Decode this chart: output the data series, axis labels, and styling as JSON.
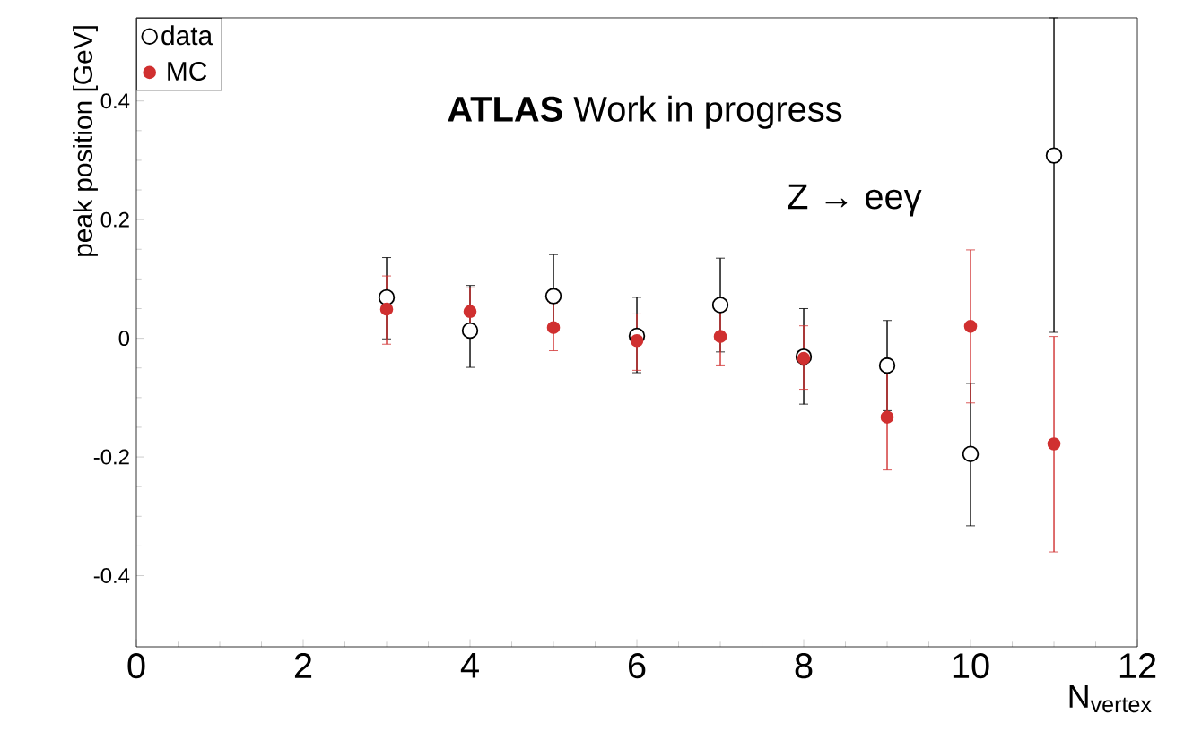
{
  "chart_data": {
    "type": "scatter",
    "xlabel": "N$_{vertex}$",
    "ylabel": "peak position [GeV]",
    "annotations": [
      "**ATLAS** Work in progress",
      "Z → eeγ"
    ],
    "xlim": [
      0,
      12
    ],
    "xticks": [
      0,
      2,
      4,
      6,
      8,
      10,
      12
    ],
    "ylim": [
      -0.52,
      0.54
    ],
    "yticks": [
      -0.4,
      -0.2,
      0,
      0.2,
      0.4
    ],
    "x": [
      3,
      4,
      5,
      6,
      7,
      8,
      9,
      10,
      11
    ],
    "legend": "top left",
    "grid": false,
    "series": [
      {
        "name": "data",
        "color": "#000000",
        "marker": "circle",
        "values": [
          0.069,
          0.013,
          0.071,
          0.004,
          0.056,
          -0.031,
          -0.046,
          -0.195,
          0.308
        ],
        "errors": [
          [
            -0.001,
            0.136
          ],
          [
            -0.049,
            0.089
          ],
          [
            0.02,
            0.141
          ],
          [
            -0.058,
            0.069
          ],
          [
            -0.023,
            0.135
          ],
          [
            -0.111,
            0.05
          ],
          [
            -0.122,
            0.03
          ],
          [
            -0.316,
            -0.076
          ],
          [
            0.01,
            0.54
          ]
        ]
      },
      {
        "name": "MC",
        "color": "#d03030",
        "marker": "circle",
        "values": [
          0.049,
          0.045,
          0.018,
          -0.004,
          0.003,
          -0.034,
          -0.133,
          0.02,
          -0.178
        ],
        "errors": [
          [
            -0.01,
            0.105
          ],
          [
            0.005,
            0.085
          ],
          [
            -0.021,
            0.059
          ],
          [
            -0.054,
            0.041
          ],
          [
            -0.045,
            0.049
          ],
          [
            -0.086,
            0.021
          ],
          [
            -0.222,
            -0.051
          ],
          [
            -0.109,
            0.149
          ],
          [
            -0.36,
            0.003
          ]
        ]
      }
    ]
  }
}
